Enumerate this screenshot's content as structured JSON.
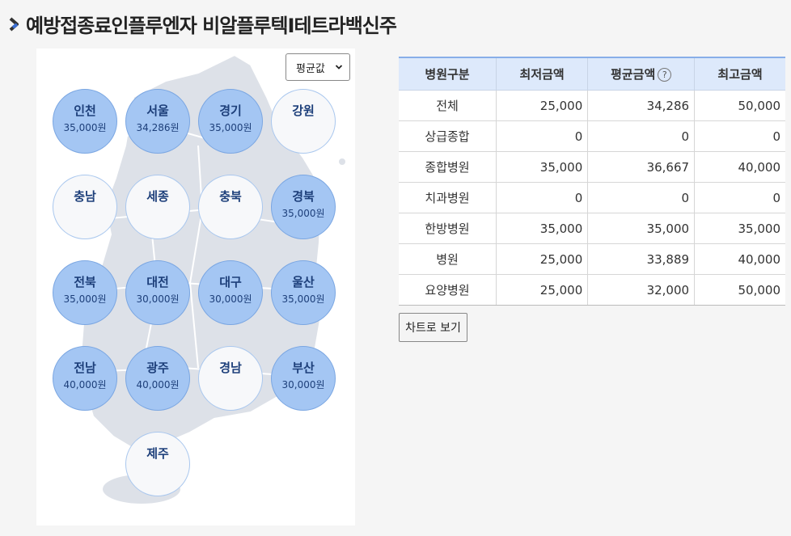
{
  "page": {
    "title": "예방접종료인플루엔자 비알플루텍I테트라백신주"
  },
  "map": {
    "select_value": "평균값",
    "regions": [
      {
        "name": "인천",
        "amount": "35,000원",
        "active": true
      },
      {
        "name": "서울",
        "amount": "34,286원",
        "active": true
      },
      {
        "name": "경기",
        "amount": "35,000원",
        "active": true
      },
      {
        "name": "강원",
        "amount": "",
        "active": false
      },
      {
        "name": "충남",
        "amount": "",
        "active": false
      },
      {
        "name": "세종",
        "amount": "",
        "active": false
      },
      {
        "name": "충북",
        "amount": "",
        "active": false
      },
      {
        "name": "경북",
        "amount": "35,000원",
        "active": true
      },
      {
        "name": "전북",
        "amount": "35,000원",
        "active": true
      },
      {
        "name": "대전",
        "amount": "30,000원",
        "active": true
      },
      {
        "name": "대구",
        "amount": "30,000원",
        "active": true
      },
      {
        "name": "울산",
        "amount": "35,000원",
        "active": true
      },
      {
        "name": "전남",
        "amount": "40,000원",
        "active": true
      },
      {
        "name": "광주",
        "amount": "40,000원",
        "active": true
      },
      {
        "name": "경남",
        "amount": "",
        "active": false
      },
      {
        "name": "부산",
        "amount": "30,000원",
        "active": true
      },
      {
        "name": "제주",
        "amount": "",
        "active": false
      }
    ]
  },
  "table": {
    "headers": [
      "병원구분",
      "최저금액",
      "평균금액",
      "최고금액"
    ],
    "help_glyph": "?",
    "rows": [
      [
        "전체",
        "25,000",
        "34,286",
        "50,000"
      ],
      [
        "상급종합",
        "0",
        "0",
        "0"
      ],
      [
        "종합병원",
        "35,000",
        "36,667",
        "40,000"
      ],
      [
        "치과병원",
        "0",
        "0",
        "0"
      ],
      [
        "한방병원",
        "35,000",
        "35,000",
        "35,000"
      ],
      [
        "병원",
        "25,000",
        "33,889",
        "40,000"
      ],
      [
        "요양병원",
        "25,000",
        "32,000",
        "50,000"
      ]
    ]
  },
  "actions": {
    "chart_button": "차트로 보기"
  },
  "colors": {
    "active_bubble": "#a4c6f3",
    "inactive_bubble": "#f7f8fa",
    "header_bg": "#dde9fb",
    "map_land": "#dde1e8"
  }
}
